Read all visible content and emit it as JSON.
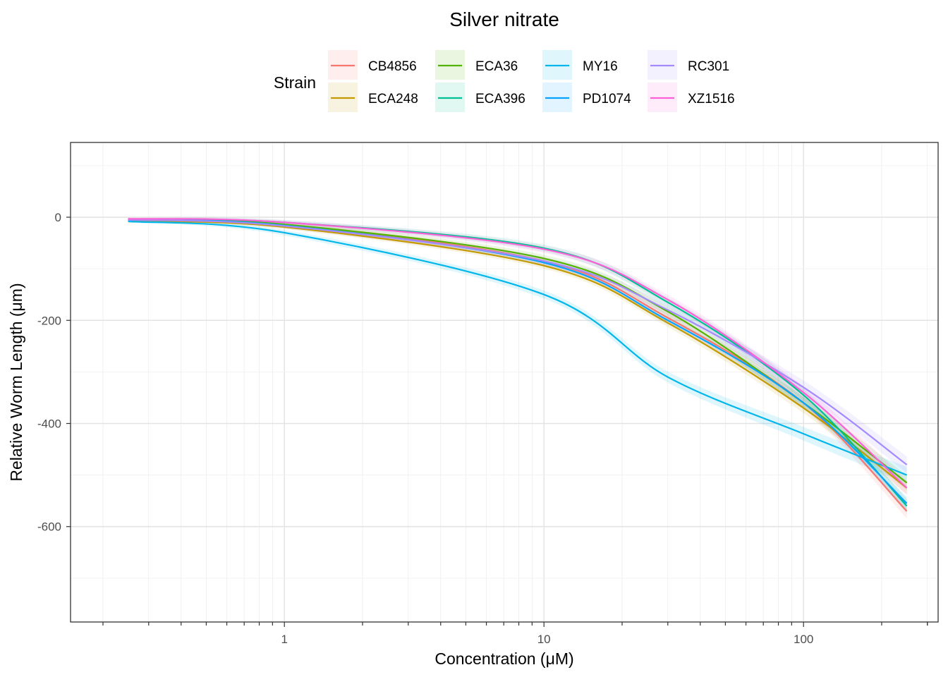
{
  "chart_data": {
    "type": "line",
    "title": "Silver nitrate",
    "xlabel": "Concentration (μM)",
    "ylabel": "Relative Worm Length (μm)",
    "x_scale": "log10",
    "xlim": [
      0.15,
      330
    ],
    "ylim": [
      -785,
      145
    ],
    "x_major_ticks": [
      1,
      10,
      100
    ],
    "x_tick_labels": [
      "1",
      "10",
      "100"
    ],
    "y_major_ticks": [
      0,
      -200,
      -400,
      -600
    ],
    "y_tick_labels": [
      "0",
      "-200",
      "-400",
      "-600"
    ],
    "grid": true,
    "confidence_band": true,
    "legend": {
      "title": "Strain",
      "position": "top",
      "columns": 4,
      "entries": [
        "CB4856",
        "ECA248",
        "ECA36",
        "ECA396",
        "MY16",
        "PD1074",
        "RC301",
        "XZ1516"
      ]
    },
    "series": [
      {
        "name": "CB4856",
        "color": "#F8766D",
        "x": [
          0.25,
          1,
          10,
          30,
          100,
          250
        ],
        "y": [
          -5,
          -15,
          -85,
          -195,
          -360,
          -570
        ],
        "band": 14
      },
      {
        "name": "ECA248",
        "color": "#C49A00",
        "x": [
          0.25,
          1,
          10,
          30,
          100,
          250
        ],
        "y": [
          -8,
          -19,
          -94,
          -205,
          -370,
          -525
        ],
        "band": 12
      },
      {
        "name": "ECA36",
        "color": "#53B400",
        "x": [
          0.25,
          1,
          10,
          30,
          100,
          250
        ],
        "y": [
          -5,
          -14,
          -80,
          -183,
          -360,
          -515
        ],
        "band": 14
      },
      {
        "name": "ECA396",
        "color": "#00C094",
        "x": [
          0.25,
          1,
          10,
          30,
          100,
          250
        ],
        "y": [
          -4,
          -10,
          -60,
          -165,
          -345,
          -560
        ],
        "band": 14
      },
      {
        "name": "MY16",
        "color": "#00B6EB",
        "x": [
          0.25,
          1,
          10,
          30,
          100,
          250
        ],
        "y": [
          -8,
          -30,
          -150,
          -310,
          -420,
          -500
        ],
        "band": 16
      },
      {
        "name": "PD1074",
        "color": "#06A4FF",
        "x": [
          0.25,
          1,
          10,
          30,
          100,
          250
        ],
        "y": [
          -5,
          -16,
          -88,
          -200,
          -360,
          -555
        ],
        "band": 12
      },
      {
        "name": "RC301",
        "color": "#A58AFF",
        "x": [
          0.25,
          1,
          10,
          30,
          100,
          250
        ],
        "y": [
          -5,
          -17,
          -85,
          -180,
          -330,
          -480
        ],
        "band": 16
      },
      {
        "name": "XZ1516",
        "color": "#FB61D7",
        "x": [
          0.25,
          1,
          10,
          30,
          100,
          250
        ],
        "y": [
          -3,
          -10,
          -62,
          -160,
          -340,
          -525
        ],
        "band": 14
      }
    ]
  }
}
